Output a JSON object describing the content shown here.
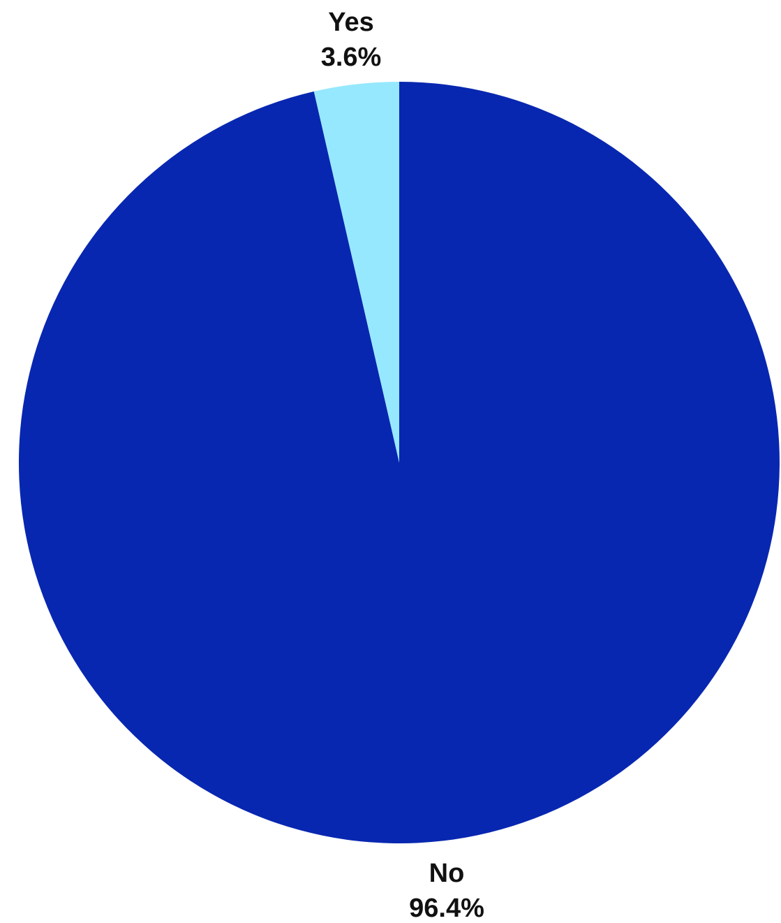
{
  "chart_data": {
    "type": "pie",
    "title": "",
    "start_angle_deg": 0,
    "direction": "clockwise",
    "slices": [
      {
        "label": "No",
        "value": 96.4,
        "display_value": "96.4%",
        "color": "#0827b0"
      },
      {
        "label": "Yes",
        "value": 3.6,
        "display_value": "3.6%",
        "color": "#96e8fe"
      }
    ]
  }
}
